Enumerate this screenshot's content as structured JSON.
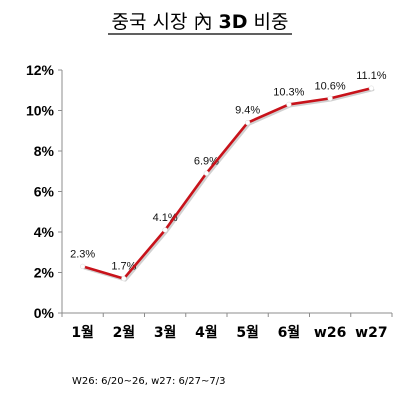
{
  "chart_data": {
    "type": "line",
    "title": "중국 시장 內 3D 비중",
    "title_parts": [
      "중국 시장 內 ",
      "3D",
      " 비중"
    ],
    "categories": [
      "1월",
      "2월",
      "3월",
      "4월",
      "5월",
      "6월",
      "w26",
      "w27"
    ],
    "series": [
      {
        "values": [
          2.3,
          1.7,
          4.1,
          6.9,
          9.4,
          10.3,
          10.6,
          11.1
        ],
        "data_labels": [
          "2.3%",
          "1.7%",
          "4.1%",
          "6.9%",
          "9.4%",
          "10.3%",
          "10.6%",
          "11.1%"
        ]
      }
    ],
    "ylim": [
      0,
      12
    ],
    "y_ticks": [
      0,
      2,
      4,
      6,
      8,
      10,
      12
    ],
    "y_tick_labels": [
      "0%",
      "2%",
      "4%",
      "6%",
      "8%",
      "10%",
      "12%"
    ],
    "xlabel": "",
    "ylabel": "",
    "grid": false,
    "legend": "none",
    "line_color": "#c8121a",
    "marker_color": "#ffffff"
  },
  "footnote": "W26: 6/20~26, w27: 6/27~7/3"
}
